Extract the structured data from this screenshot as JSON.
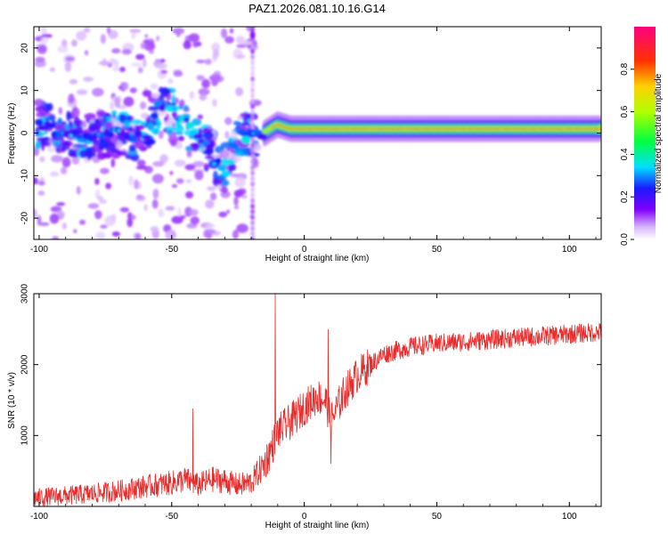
{
  "chart_data": [
    {
      "type": "heatmap",
      "title": "PAZ1.2026.081.10.16.G14",
      "xlabel": "Height of straight line (km)",
      "ylabel": "Frequency (Hz)",
      "xlim": [
        -102,
        112
      ],
      "ylim": [
        -25,
        25
      ],
      "xticks": [
        -100,
        -50,
        0,
        50,
        100
      ],
      "xtick_labels": [
        "-100",
        "-50",
        "0",
        "50",
        "100"
      ],
      "yticks": [
        -20,
        -10,
        0,
        10,
        20
      ],
      "ytick_labels": [
        "-20",
        "-10",
        "0",
        "10",
        "20"
      ],
      "colorbar": {
        "label": "Normalized spectral amplitude",
        "range": [
          0,
          1
        ],
        "ticks": [
          0.0,
          0.2,
          0.4,
          0.6,
          0.8
        ],
        "tick_labels": [
          "0.0",
          "0.2",
          "0.4",
          "0.6",
          "0.8"
        ]
      },
      "ridge": {
        "x": [
          -100,
          -90,
          -80,
          -70,
          -60,
          -55,
          -50,
          -45,
          -40,
          -35,
          -30,
          -25,
          -20,
          -15,
          -10,
          -5,
          0,
          10,
          20,
          30,
          50,
          70,
          90,
          100,
          112
        ],
        "freq": [
          2,
          0,
          -1,
          0,
          -2,
          6,
          5,
          2,
          -1,
          -5,
          -9,
          0,
          -1,
          0,
          2,
          1,
          1,
          1,
          1,
          1,
          1,
          1,
          1,
          1,
          1
        ]
      }
    },
    {
      "type": "line",
      "xlabel": "Height of straight line (km)",
      "ylabel": "SNR (10 * v/v)",
      "xlim": [
        -102,
        112
      ],
      "ylim": [
        0,
        3000
      ],
      "xticks": [
        -100,
        -50,
        0,
        50,
        100
      ],
      "xtick_labels": [
        "-100",
        "-50",
        "0",
        "50",
        "100"
      ],
      "yticks": [
        1000,
        2000,
        3000
      ],
      "ytick_labels": [
        "1000",
        "2000",
        "3000"
      ],
      "color": "#e82c2c",
      "series": [
        {
          "name": "SNR",
          "x": [
            -102,
            -90,
            -80,
            -70,
            -60,
            -50,
            -45,
            -40,
            -35,
            -30,
            -25,
            -20,
            -15,
            -12,
            -10,
            -5,
            0,
            5,
            8,
            10,
            15,
            20,
            25,
            30,
            40,
            50,
            60,
            70,
            80,
            90,
            100,
            112
          ],
          "y": [
            120,
            150,
            180,
            220,
            280,
            330,
            380,
            300,
            380,
            360,
            300,
            340,
            600,
            850,
            1050,
            1200,
            1400,
            1550,
            1500,
            1200,
            1600,
            1850,
            2000,
            2150,
            2250,
            2300,
            2320,
            2350,
            2380,
            2400,
            2430,
            2460
          ]
        }
      ],
      "spikes": [
        {
          "x": -42,
          "y": 1380
        },
        {
          "x": -11,
          "y": 3000
        },
        {
          "x": 9,
          "y": 2500
        },
        {
          "x": 10,
          "y": 600
        }
      ]
    }
  ]
}
